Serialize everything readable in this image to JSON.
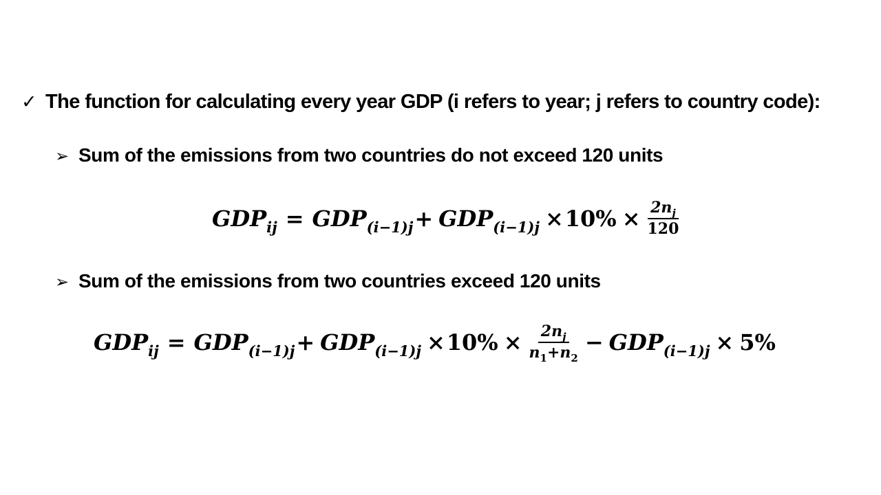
{
  "heading": {
    "bullet": "✓",
    "text": "The function for calculating every year GDP (i refers to year; j refers to country code):"
  },
  "case1": {
    "bullet": "➢",
    "text": "Sum of the emissions from two countries do not exceed 120 units"
  },
  "case2": {
    "bullet": "➢",
    "text": "Sum of the emissions from two countries exceed 120 units"
  },
  "formula": {
    "gdp": "GDP",
    "lhs_sub": "ij",
    "prev_sub": "(i−1)j",
    "equals": "=",
    "plus": "+",
    "minus": "−",
    "times": "×",
    "rate_up": "10%",
    "rate_down": "5%",
    "numerator": "2n",
    "numerator_sub": "j",
    "denominator1": "120",
    "denominator2_a": "n",
    "denominator2_a_sub": "1",
    "denominator2_b": "n",
    "denominator2_b_sub": "2"
  }
}
